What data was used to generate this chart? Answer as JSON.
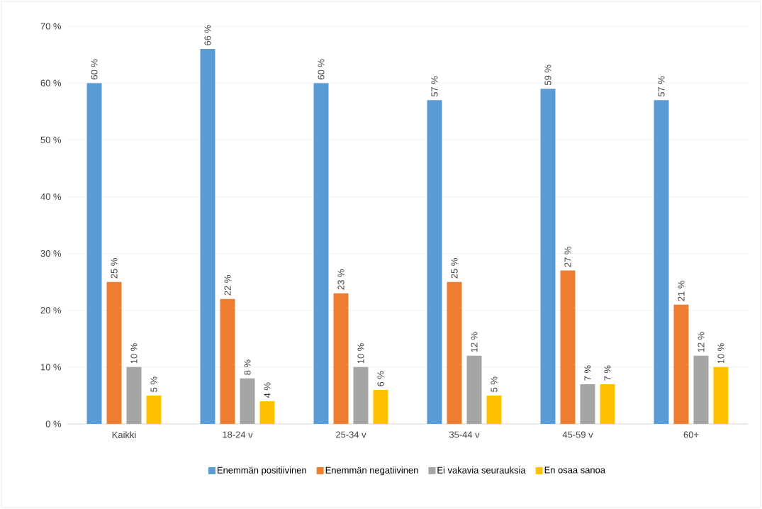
{
  "chart_data": {
    "type": "bar",
    "categories": [
      "Kaikki",
      "18-24 v",
      "25-34 v",
      "35-44 v",
      "45-59 v",
      "60+"
    ],
    "series": [
      {
        "name": "Enemmän positiivinen",
        "color": "#5b9bd5",
        "values": [
          60,
          66,
          60,
          57,
          59,
          57
        ],
        "value_labels": [
          "60 %",
          "66 %",
          "60 %",
          "57 %",
          "59 %",
          "57 %"
        ]
      },
      {
        "name": "Enemmän negatiivinen",
        "color": "#ed7d31",
        "values": [
          25,
          22,
          23,
          25,
          27,
          21
        ],
        "value_labels": [
          "25 %",
          "22 %",
          "23 %",
          "25 %",
          "27 %",
          "21 %"
        ]
      },
      {
        "name": "Ei vakavia seurauksia",
        "color": "#a5a5a5",
        "values": [
          10,
          8,
          10,
          12,
          7,
          12
        ],
        "value_labels": [
          "10 %",
          "8 %",
          "10 %",
          "12 %",
          "7 %",
          "12 %"
        ]
      },
      {
        "name": "En osaa sanoa",
        "color": "#ffc000",
        "values": [
          5,
          4,
          6,
          5,
          7,
          10
        ],
        "value_labels": [
          "5 %",
          "4 %",
          "6 %",
          "5 %",
          "7 %",
          "10 %"
        ]
      }
    ],
    "ylim": [
      0,
      70
    ],
    "yticks": [
      {
        "value": 0,
        "label": "0 %"
      },
      {
        "value": 10,
        "label": "10 %"
      },
      {
        "value": 20,
        "label": "20 %"
      },
      {
        "value": 30,
        "label": "30 %"
      },
      {
        "value": 40,
        "label": "40 %"
      },
      {
        "value": 50,
        "label": "50 %"
      },
      {
        "value": 60,
        "label": "60 %"
      },
      {
        "value": 70,
        "label": "70 %"
      }
    ],
    "grid": "y",
    "legend": "bottom"
  }
}
